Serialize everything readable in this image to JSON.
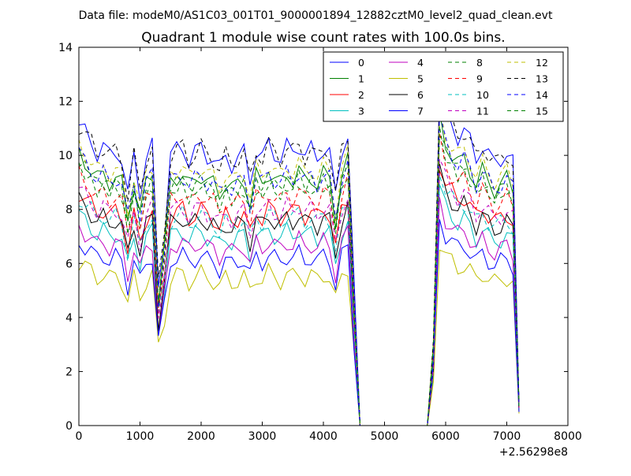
{
  "chart_data": {
    "type": "line",
    "supertitle": "Data file: modeM0/AS1C03_001T01_9000001894_12882cztM0_level2_quad_clean.evt",
    "title": "Quadrant 1 module wise count rates with 100.0s bins.",
    "xlabel": "",
    "ylabel": "",
    "xlim": [
      0,
      8000
    ],
    "ylim": [
      0,
      14
    ],
    "xticks": [
      0,
      1000,
      2000,
      3000,
      4000,
      5000,
      6000,
      7000,
      8000
    ],
    "yticks": [
      0,
      2,
      4,
      6,
      8,
      10,
      12,
      14
    ],
    "x_offset_label": "+2.56298e8",
    "grid": false,
    "legend": {
      "placement": "top-right",
      "columns": 4
    },
    "x": [
      0,
      100,
      200,
      300,
      400,
      500,
      600,
      700,
      800,
      900,
      1000,
      1100,
      1200,
      1300,
      1400,
      1500,
      1600,
      1700,
      1800,
      1900,
      2000,
      2100,
      2200,
      2300,
      2400,
      2500,
      2600,
      2700,
      2800,
      2900,
      3000,
      3100,
      3200,
      3300,
      3400,
      3500,
      3600,
      3700,
      3800,
      3900,
      4000,
      4100,
      4200,
      4300,
      4400,
      4500,
      4600,
      4700,
      4800,
      4900,
      5000,
      5100,
      5200,
      5300,
      5400,
      5500,
      5600,
      5700,
      5800,
      5900,
      6000,
      6100,
      6200,
      6300,
      6400,
      6500,
      6600,
      6700,
      6800,
      6900,
      7000,
      7100,
      7200
    ],
    "series": [
      {
        "name": "0",
        "color": "#0000ff",
        "dash": "solid",
        "base": 10.3
      },
      {
        "name": "1",
        "color": "#008000",
        "dash": "solid",
        "base": 9.3
      },
      {
        "name": "2",
        "color": "#ff0000",
        "dash": "solid",
        "base": 8.0
      },
      {
        "name": "3",
        "color": "#00bfbf",
        "dash": "solid",
        "base": 7.2
      },
      {
        "name": "4",
        "color": "#bf00bf",
        "dash": "solid",
        "base": 6.8
      },
      {
        "name": "5",
        "color": "#bfbf00",
        "dash": "solid",
        "base": 5.6
      },
      {
        "name": "6",
        "color": "#000000",
        "dash": "solid",
        "base": 7.7
      },
      {
        "name": "7",
        "color": "#0000ff",
        "dash": "solid",
        "base": 6.3
      },
      {
        "name": "8",
        "color": "#008000",
        "dash": "dashed",
        "base": 9.0
      },
      {
        "name": "9",
        "color": "#ff0000",
        "dash": "dashed",
        "base": 8.6
      },
      {
        "name": "10",
        "color": "#00bfbf",
        "dash": "dashed",
        "base": 7.8
      },
      {
        "name": "11",
        "color": "#bf00bf",
        "dash": "dashed",
        "base": 8.1
      },
      {
        "name": "12",
        "color": "#bfbf00",
        "dash": "dashed",
        "base": 9.6
      },
      {
        "name": "13",
        "color": "#000000",
        "dash": "dashed",
        "base": 10.3
      },
      {
        "name": "14",
        "color": "#0000ff",
        "dash": "dashed",
        "base": 9.3
      },
      {
        "name": "15",
        "color": "#008000",
        "dash": "dashed",
        "base": 9.0
      }
    ],
    "profile": [
      1.08,
      1.05,
      1.02,
      0.98,
      1.0,
      0.97,
      0.99,
      0.96,
      0.82,
      0.97,
      0.84,
      0.96,
      1.0,
      0.5,
      0.7,
      0.97,
      0.99,
      1.0,
      0.95,
      0.98,
      1.0,
      0.97,
      0.96,
      0.92,
      0.97,
      0.94,
      0.96,
      0.98,
      0.88,
      0.99,
      0.96,
      1.01,
      0.98,
      0.96,
      1.0,
      0.98,
      1.01,
      0.97,
      0.99,
      0.96,
      1.0,
      0.98,
      0.82,
      0.99,
      1.05,
      0.5,
      0.0,
      0.0,
      0.0,
      0.0,
      0.0,
      0.0,
      0.0,
      0.0,
      0.0,
      0.0,
      0.0,
      0.0,
      0.3,
      1.22,
      1.12,
      1.08,
      1.04,
      1.06,
      1.02,
      0.96,
      1.01,
      0.97,
      0.94,
      0.96,
      0.98,
      0.94,
      0.08
    ]
  }
}
